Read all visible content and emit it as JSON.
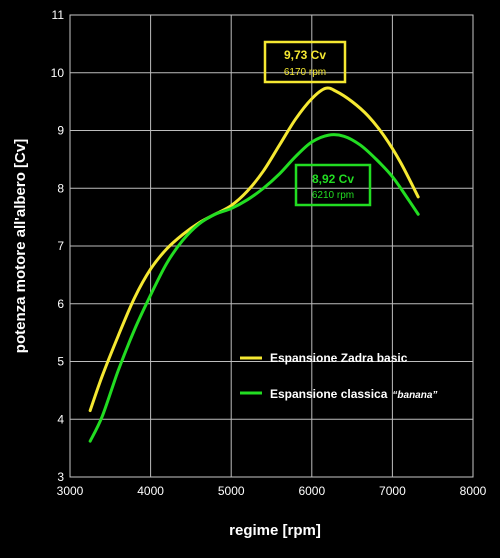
{
  "chart_data": {
    "type": "line",
    "xlabel": "regime [rpm]",
    "ylabel": "potenza motore all'albero [Cv]",
    "xlim": [
      3000,
      8000
    ],
    "ylim": [
      3,
      11
    ],
    "xticks": [
      3000,
      4000,
      5000,
      6000,
      7000,
      8000
    ],
    "yticks": [
      3,
      4,
      5,
      6,
      7,
      8,
      9,
      10,
      11
    ],
    "grid": true,
    "legend_position": "lower-right",
    "series": [
      {
        "name": "Espansione Zadra basic",
        "color": "#f5e832",
        "x": [
          3250,
          3400,
          3600,
          3800,
          4000,
          4200,
          4400,
          4600,
          4800,
          5000,
          5200,
          5400,
          5600,
          5800,
          6000,
          6170,
          6300,
          6500,
          6700,
          6900,
          7100,
          7320
        ],
        "y": [
          4.15,
          4.75,
          5.45,
          6.1,
          6.6,
          6.95,
          7.2,
          7.4,
          7.55,
          7.7,
          7.95,
          8.3,
          8.75,
          9.2,
          9.55,
          9.73,
          9.68,
          9.5,
          9.25,
          8.9,
          8.45,
          7.85
        ]
      },
      {
        "name": "Espansione classica",
        "name_note": "“banana”",
        "color": "#22dd22",
        "x": [
          3250,
          3400,
          3600,
          3800,
          4000,
          4200,
          4400,
          4600,
          4800,
          5000,
          5200,
          5400,
          5600,
          5800,
          6000,
          6210,
          6400,
          6600,
          6800,
          7000,
          7200,
          7320
        ],
        "y": [
          3.62,
          4.05,
          4.85,
          5.55,
          6.15,
          6.7,
          7.1,
          7.38,
          7.55,
          7.65,
          7.8,
          8.0,
          8.25,
          8.55,
          8.8,
          8.92,
          8.9,
          8.75,
          8.5,
          8.2,
          7.8,
          7.55
        ]
      }
    ],
    "annotations": [
      {
        "value": "9,73 Cv",
        "rpm": "6170 rpm",
        "color": "#f5e832"
      },
      {
        "value": "8,92 Cv",
        "rpm": "6210 rpm",
        "color": "#22dd22"
      }
    ]
  }
}
